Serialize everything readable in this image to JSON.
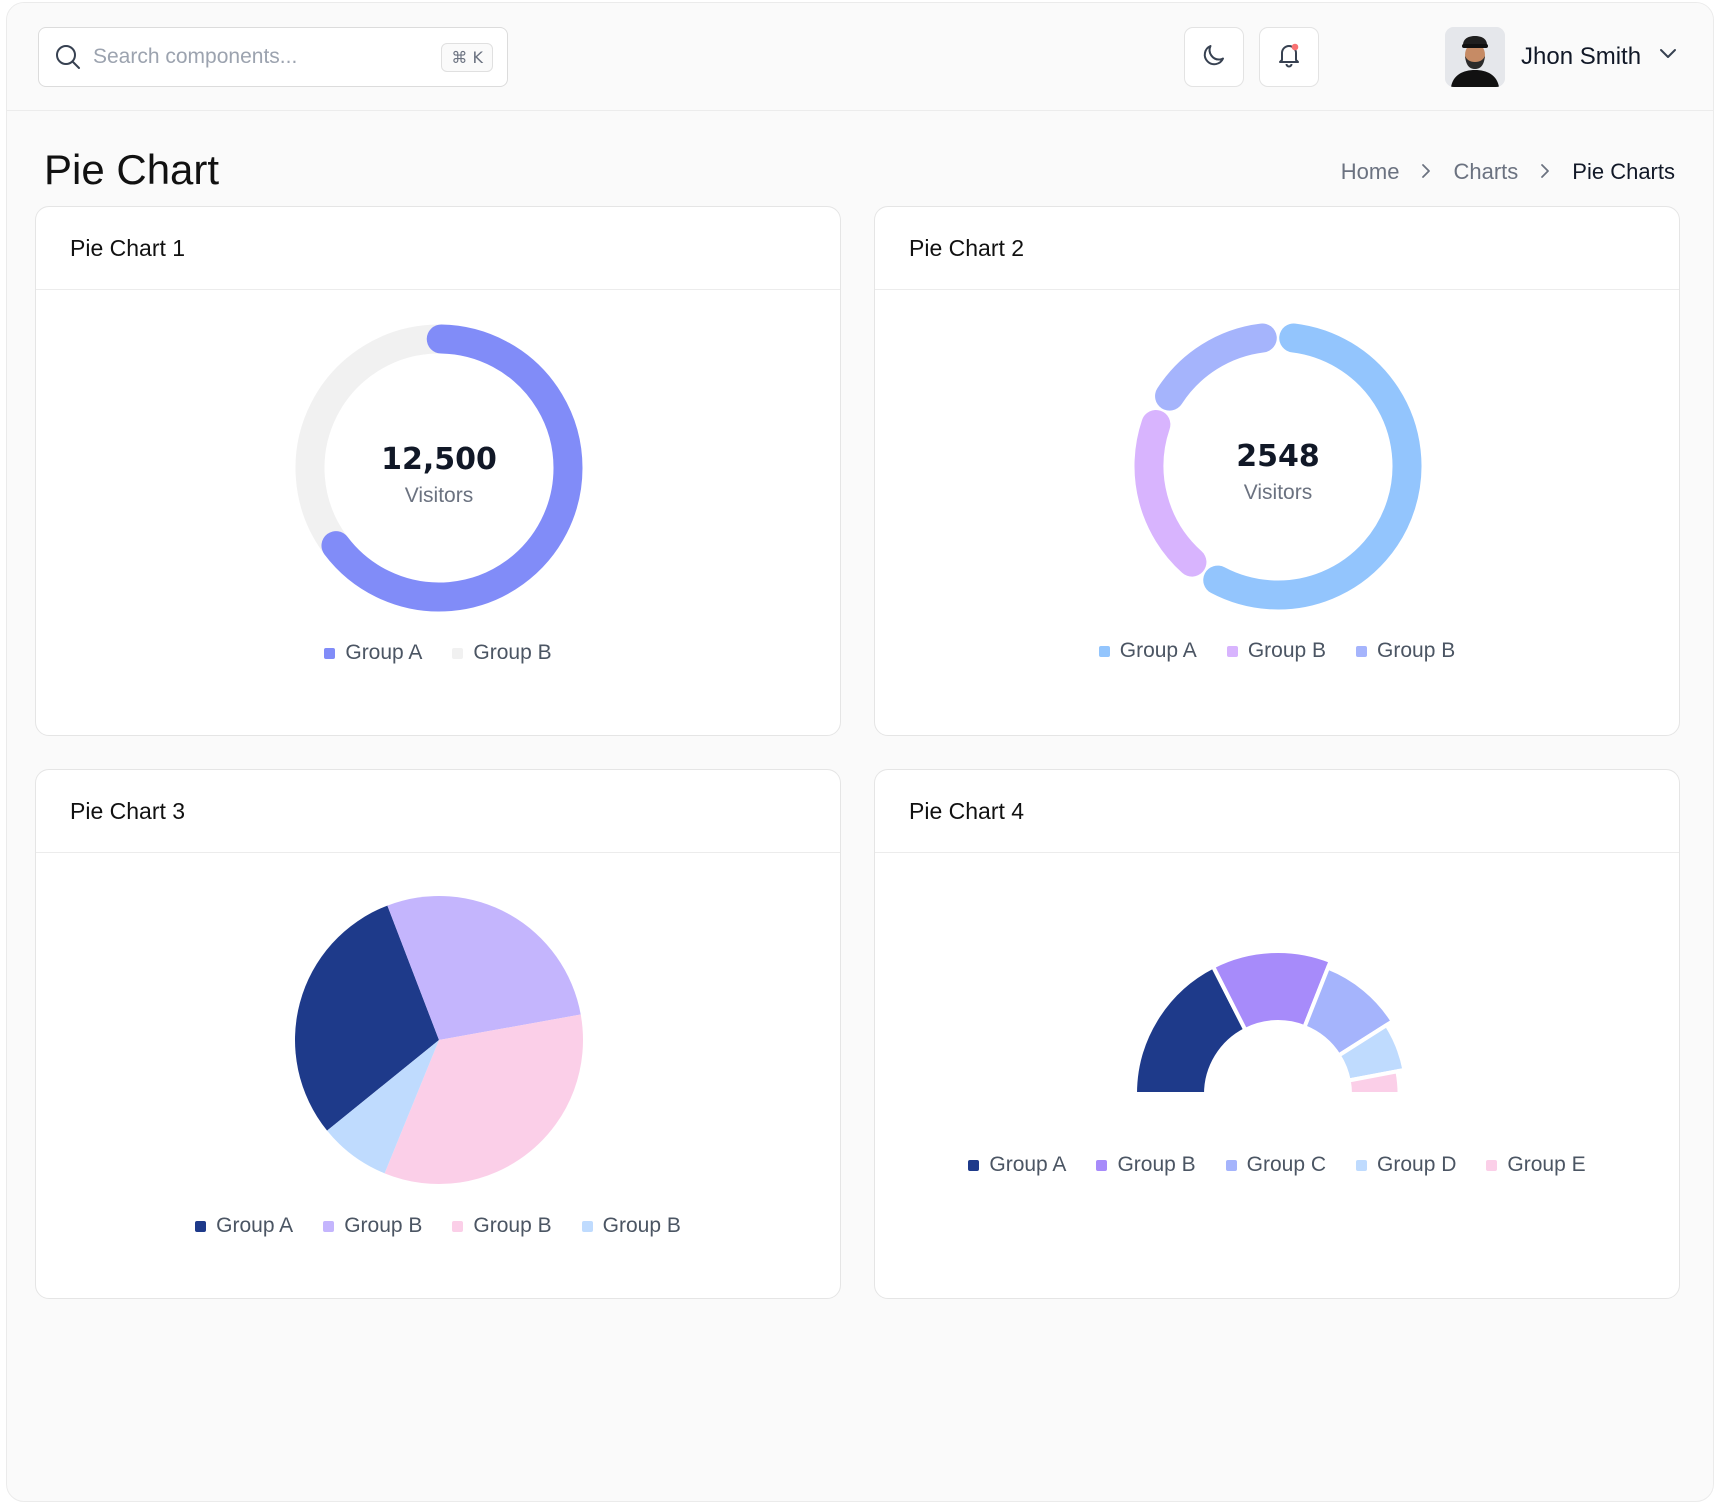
{
  "header": {
    "search_placeholder": "Search components...",
    "search_shortcut": "⌘ K",
    "user_name": "Jhon Smith"
  },
  "page": {
    "title": "Pie Chart",
    "breadcrumb": [
      "Home",
      "Charts",
      "Pie Charts"
    ]
  },
  "colors": {
    "accent": "#818cf8",
    "track": "#f1f1f1",
    "sky": "#93c5fd",
    "lilac": "#d8b4fe",
    "periwinkle": "#a5b4fc",
    "navy": "#1e3a8a",
    "lavender": "#c4b5fd",
    "pink": "#fbcfe8",
    "pale_blue": "#bfdbfe",
    "violet": "#a78bfa"
  },
  "icons": {
    "search": "search-icon",
    "theme": "moon-icon",
    "notifications": "bell-icon",
    "user_menu": "chevron-down-icon",
    "breadcrumb_separator": "chevron-right-icon"
  },
  "cards": [
    {
      "title": "Pie Chart 1",
      "center_value": "12,500",
      "center_label": "Visitors"
    },
    {
      "title": "Pie Chart 2",
      "center_value": "2548",
      "center_label": "Visitors"
    },
    {
      "title": "Pie Chart 3"
    },
    {
      "title": "Pie Chart 4"
    }
  ],
  "chart_data": [
    {
      "type": "pie",
      "variant": "donut",
      "title": "Pie Chart 1",
      "labels": [
        "Group A",
        "Group B"
      ],
      "values": [
        65,
        35
      ],
      "colors": [
        "#818cf8",
        "#f1f1f1"
      ],
      "center_value": "12,500",
      "center_label": "Visitors"
    },
    {
      "type": "pie",
      "variant": "donut",
      "title": "Pie Chart 2",
      "labels": [
        "Group A",
        "Group B",
        "Group B"
      ],
      "values": [
        60,
        20,
        15
      ],
      "colors": [
        "#93c5fd",
        "#d8b4fe",
        "#a5b4fc"
      ],
      "center_value": "2548",
      "center_label": "Visitors"
    },
    {
      "type": "pie",
      "title": "Pie Chart 3",
      "labels": [
        "Group A",
        "Group B",
        "Group B",
        "Group B"
      ],
      "values": [
        30,
        28,
        34,
        8
      ],
      "colors": [
        "#1e3a8a",
        "#c4b5fd",
        "#fbcfe8",
        "#bfdbfe"
      ]
    },
    {
      "type": "pie",
      "variant": "half-donut",
      "title": "Pie Chart 4",
      "labels": [
        "Group A",
        "Group B",
        "Group C",
        "Group D",
        "Group E"
      ],
      "values": [
        35,
        27,
        20,
        12,
        6
      ],
      "outer_radius_scale": [
        1.0,
        1.0,
        0.95,
        0.9,
        0.85
      ],
      "colors": [
        "#1e3a8a",
        "#a78bfa",
        "#a5b4fc",
        "#bfdbfe",
        "#fbcfe8"
      ]
    }
  ]
}
